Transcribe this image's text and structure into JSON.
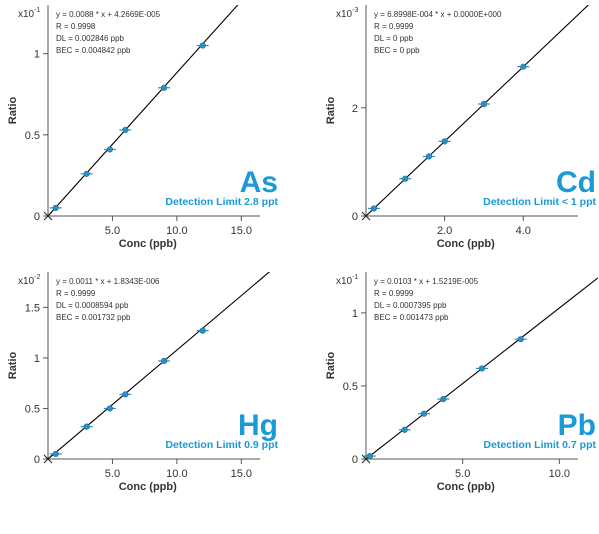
{
  "colors": {
    "accent": "#1a9ad6",
    "marker": "#2b8fc4",
    "line": "#000000",
    "axis": "#555555",
    "text": "#333333"
  },
  "chart_data": [
    {
      "type": "scatter",
      "element": "As",
      "detection_limit": "Detection Limit 2.8 ppt",
      "scale_label": "x10",
      "scale_exp": "-1",
      "xlabel": "Conc (ppb)",
      "ylabel": "Ratio",
      "xlim": [
        0,
        18
      ],
      "ylim": [
        0,
        1.3
      ],
      "xticks": [
        {
          "v": 5,
          "label": "5.0"
        },
        {
          "v": 10,
          "label": "10.0"
        },
        {
          "v": 15,
          "label": "15.0"
        }
      ],
      "yticks": [
        {
          "v": 0,
          "label": "0"
        },
        {
          "v": 0.5,
          "label": "0.5"
        },
        {
          "v": 1,
          "label": "1"
        }
      ],
      "stats": [
        "y = 0.0088 * x + 4.2669E-005",
        "R = 0.9998",
        "DL = 0.002846 ppb",
        "BEC = 0.004842 ppb"
      ],
      "x": [
        0,
        0.6,
        3,
        4.8,
        6,
        9,
        12
      ],
      "y": [
        0,
        0.05,
        0.26,
        0.41,
        0.53,
        0.79,
        1.05
      ],
      "fit": {
        "x1": 0,
        "y1": 0,
        "x2": 18,
        "y2": 1.59
      }
    },
    {
      "type": "scatter",
      "element": "Cd",
      "detection_limit": "Detection Limit < 1 ppt",
      "scale_label": "x10",
      "scale_exp": "-3",
      "xlabel": "Conc (ppb)",
      "ylabel": "Ratio",
      "xlim": [
        0,
        5.9
      ],
      "ylim": [
        0,
        3.9
      ],
      "xticks": [
        {
          "v": 2,
          "label": "2.0"
        },
        {
          "v": 4,
          "label": "4.0"
        }
      ],
      "yticks": [
        {
          "v": 0,
          "label": "0"
        },
        {
          "v": 2,
          "label": "2"
        }
      ],
      "stats": [
        "y = 6.8998E-004 * x + 0.0000E+000",
        "R = 0.9999",
        "DL = 0 ppb",
        "BEC = 0 ppb"
      ],
      "x": [
        0,
        0.2,
        1,
        1.6,
        2,
        3,
        4
      ],
      "y": [
        0,
        0.14,
        0.69,
        1.1,
        1.38,
        2.07,
        2.76
      ],
      "fit": {
        "x1": 0,
        "y1": 0,
        "x2": 5.9,
        "y2": 4.07
      }
    },
    {
      "type": "scatter",
      "element": "Hg",
      "detection_limit": "Detection Limit 0.9 ppt",
      "scale_label": "x10",
      "scale_exp": "-2",
      "xlabel": "Conc (ppb)",
      "ylabel": "Ratio",
      "xlim": [
        0,
        18
      ],
      "ylim": [
        0,
        1.85
      ],
      "xticks": [
        {
          "v": 5,
          "label": "5.0"
        },
        {
          "v": 10,
          "label": "10.0"
        },
        {
          "v": 15,
          "label": "15.0"
        }
      ],
      "yticks": [
        {
          "v": 0,
          "label": "0"
        },
        {
          "v": 0.5,
          "label": "0.5"
        },
        {
          "v": 1,
          "label": "1"
        },
        {
          "v": 1.5,
          "label": "1.5"
        }
      ],
      "stats": [
        "y = 0.0011 * x + 1.8343E-006",
        "R = 0.9999",
        "DL = 0.0008594 ppb",
        "BEC = 0.001732 ppb"
      ],
      "x": [
        0,
        0.6,
        3,
        4.8,
        6,
        9,
        12
      ],
      "y": [
        0,
        0.05,
        0.32,
        0.5,
        0.64,
        0.97,
        1.27
      ],
      "fit": {
        "x1": 0,
        "y1": 0,
        "x2": 18,
        "y2": 1.94
      }
    },
    {
      "type": "scatter",
      "element": "Pb",
      "detection_limit": "Detection Limit 0.7 ppt",
      "scale_label": "x10",
      "scale_exp": "-1",
      "xlabel": "Conc (ppb)",
      "ylabel": "Ratio",
      "xlim": [
        0,
        12
      ],
      "ylim": [
        0,
        1.28
      ],
      "xticks": [
        {
          "v": 5,
          "label": "5.0"
        },
        {
          "v": 10,
          "label": "10.0"
        }
      ],
      "yticks": [
        {
          "v": 0,
          "label": "0"
        },
        {
          "v": 0.5,
          "label": "0.5"
        },
        {
          "v": 1,
          "label": "1"
        }
      ],
      "stats": [
        "y = 0.0103 * x + 1.5219E-005",
        "R = 0.9999",
        "DL = 0.0007395 ppb",
        "BEC = 0.001473 ppb"
      ],
      "x": [
        0,
        0.2,
        2,
        3,
        4,
        6,
        8
      ],
      "y": [
        0,
        0.02,
        0.2,
        0.31,
        0.41,
        0.62,
        0.82
      ],
      "fit": {
        "x1": 0,
        "y1": 0,
        "x2": 12,
        "y2": 1.24
      }
    }
  ]
}
